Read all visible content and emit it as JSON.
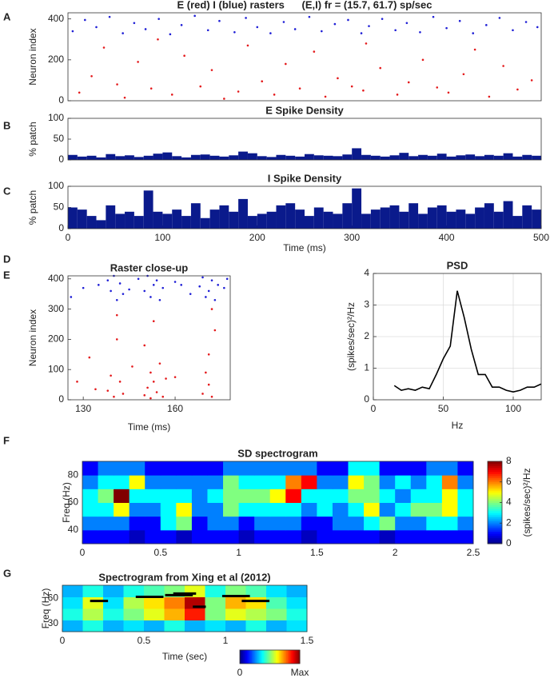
{
  "chart_data": [
    {
      "type": "raster",
      "panel": "A",
      "title": "E (red) I (blue) rasters      (E,I) fr = (15.7, 61.7) sp/sec",
      "ylabel": "Neuron index",
      "xlim": [
        0,
        500
      ],
      "ylim": [
        0,
        430
      ],
      "yticks": [
        0,
        200,
        400
      ],
      "series": [
        {
          "color": "#e41a1c",
          "x": [
            12,
            25,
            38,
            52,
            60,
            74,
            88,
            95,
            110,
            123,
            140,
            152,
            165,
            180,
            190,
            205,
            218,
            230,
            245,
            260,
            272,
            285,
            300,
            312,
            315,
            330,
            348,
            360,
            375,
            390,
            402,
            418,
            430,
            445,
            460,
            475,
            490
          ],
          "y": [
            40,
            120,
            260,
            80,
            15,
            190,
            60,
            300,
            30,
            220,
            70,
            150,
            10,
            45,
            270,
            95,
            30,
            180,
            60,
            240,
            20,
            110,
            70,
            50,
            280,
            160,
            30,
            90,
            200,
            65,
            40,
            130,
            250,
            20,
            170,
            55,
            100
          ]
        },
        {
          "color": "#1f1fd6",
          "x": [
            5,
            18,
            30,
            44,
            58,
            70,
            82,
            96,
            108,
            120,
            134,
            148,
            160,
            176,
            188,
            200,
            214,
            228,
            240,
            255,
            268,
            282,
            296,
            310,
            318,
            332,
            346,
            358,
            372,
            386,
            400,
            414,
            428,
            442,
            456,
            470,
            484,
            496
          ],
          "y": [
            340,
            395,
            360,
            410,
            330,
            380,
            350,
            400,
            325,
            370,
            415,
            345,
            390,
            335,
            405,
            360,
            330,
            385,
            350,
            410,
            340,
            375,
            395,
            330,
            365,
            400,
            345,
            380,
            335,
            410,
            355,
            390,
            330,
            370,
            405,
            345,
            385,
            360
          ]
        }
      ]
    },
    {
      "type": "histogram",
      "panel": "B",
      "title": "E Spike Density",
      "ylabel": "% patch",
      "color": "#0a1a8c",
      "xlim": [
        0,
        500
      ],
      "ylim": [
        0,
        100
      ],
      "yticks": [
        0,
        50,
        100
      ],
      "bins": [
        0,
        10,
        20,
        30,
        40,
        50,
        60,
        70,
        80,
        90,
        100,
        110,
        120,
        130,
        140,
        150,
        160,
        170,
        180,
        190,
        200,
        210,
        220,
        230,
        240,
        250,
        260,
        270,
        280,
        290,
        300,
        310,
        320,
        330,
        340,
        350,
        360,
        370,
        380,
        390,
        400,
        410,
        420,
        430,
        440,
        450,
        460,
        470,
        480,
        490,
        500
      ],
      "values": [
        12,
        8,
        10,
        6,
        14,
        9,
        11,
        7,
        10,
        15,
        18,
        9,
        6,
        12,
        13,
        10,
        8,
        11,
        20,
        16,
        9,
        7,
        12,
        10,
        8,
        14,
        11,
        10,
        9,
        13,
        28,
        12,
        10,
        8,
        11,
        17,
        9,
        12,
        10,
        15,
        8,
        11,
        13,
        9,
        12,
        10,
        16,
        8,
        12,
        10
      ]
    },
    {
      "type": "histogram",
      "panel": "C",
      "title": "I Spike Density",
      "ylabel": "% patch",
      "xlabel": "Time (ms)",
      "color": "#0a1a8c",
      "xlim": [
        0,
        500
      ],
      "ylim": [
        0,
        100
      ],
      "yticks": [
        0,
        50,
        100
      ],
      "xticks": [
        0,
        100,
        200,
        300,
        400,
        500
      ],
      "bins": [
        0,
        10,
        20,
        30,
        40,
        50,
        60,
        70,
        80,
        90,
        100,
        110,
        120,
        130,
        140,
        150,
        160,
        170,
        180,
        190,
        200,
        210,
        220,
        230,
        240,
        250,
        260,
        270,
        280,
        290,
        300,
        310,
        320,
        330,
        340,
        350,
        360,
        370,
        380,
        390,
        400,
        410,
        420,
        430,
        440,
        450,
        460,
        470,
        480,
        490,
        500
      ],
      "values": [
        50,
        45,
        30,
        20,
        55,
        35,
        40,
        30,
        90,
        40,
        35,
        45,
        30,
        60,
        25,
        45,
        55,
        40,
        70,
        30,
        35,
        40,
        55,
        60,
        45,
        30,
        50,
        40,
        35,
        60,
        95,
        35,
        45,
        50,
        55,
        40,
        60,
        35,
        50,
        55,
        40,
        45,
        35,
        50,
        60,
        40,
        65,
        30,
        55,
        45
      ]
    },
    {
      "type": "raster",
      "panel": "D",
      "title": "Raster close-up",
      "ylabel": "Neuron index",
      "xlabel": "Time (ms)",
      "xlim": [
        125,
        178
      ],
      "ylim": [
        0,
        410
      ],
      "xticks": [
        130,
        160
      ],
      "yticks": [
        0,
        100,
        200,
        300,
        400
      ],
      "series": [
        {
          "color": "#e41a1c",
          "x": [
            132,
            138,
            139,
            140,
            141,
            142,
            143,
            150,
            151,
            152,
            152,
            153,
            154,
            155,
            156,
            150,
            157,
            169,
            170,
            171,
            171,
            172,
            173,
            128,
            134,
            141,
            153,
            172,
            146,
            160
          ],
          "y": [
            140,
            30,
            80,
            10,
            200,
            60,
            20,
            15,
            40,
            90,
            5,
            60,
            25,
            120,
            10,
            180,
            70,
            20,
            90,
            50,
            150,
            10,
            230,
            60,
            35,
            280,
            260,
            300,
            110,
            75
          ]
        },
        {
          "color": "#1f1fd6",
          "x": [
            126,
            130,
            135,
            138,
            139,
            140,
            141,
            142,
            143,
            148,
            150,
            151,
            152,
            153,
            154,
            155,
            156,
            160,
            165,
            168,
            169,
            170,
            171,
            172,
            173,
            174,
            176,
            177,
            145,
            162
          ],
          "y": [
            340,
            370,
            380,
            395,
            360,
            410,
            330,
            385,
            350,
            400,
            360,
            410,
            340,
            380,
            395,
            330,
            370,
            390,
            350,
            375,
            405,
            340,
            360,
            395,
            330,
            380,
            370,
            400,
            365,
            380
          ]
        }
      ]
    },
    {
      "type": "line",
      "panel": "E",
      "title": "PSD",
      "ylabel": "(spikes/sec)²/Hz",
      "xlabel": "Hz",
      "color": "#000000",
      "grid": true,
      "xlim": [
        0,
        120
      ],
      "ylim": [
        0,
        4
      ],
      "xticks": [
        0,
        50,
        100
      ],
      "yticks": [
        0,
        1,
        2,
        3,
        4
      ],
      "x": [
        15,
        20,
        25,
        30,
        35,
        40,
        45,
        50,
        55,
        60,
        65,
        70,
        75,
        80,
        85,
        90,
        95,
        100,
        105,
        110,
        115,
        120
      ],
      "values": [
        0.45,
        0.3,
        0.35,
        0.3,
        0.4,
        0.35,
        0.8,
        1.3,
        1.7,
        3.45,
        2.6,
        1.6,
        0.8,
        0.8,
        0.4,
        0.4,
        0.3,
        0.25,
        0.3,
        0.4,
        0.4,
        0.5
      ]
    },
    {
      "type": "heatmap",
      "panel": "F",
      "title": "SD spectrogram",
      "ylabel": "Freq (Hz)",
      "xlim": [
        0,
        2.5
      ],
      "ylim": [
        30,
        90
      ],
      "xticks": [
        0,
        0.5,
        1,
        1.5,
        2,
        2.5
      ],
      "yticks": [
        40,
        60,
        80
      ],
      "clim": [
        0,
        8
      ],
      "colorbar": {
        "orientation": "vertical",
        "label": "(spikes/sec)²/Hz",
        "ticks": [
          0,
          2,
          4,
          6,
          8
        ]
      },
      "z": [
        [
          1,
          1,
          1,
          0.5,
          1,
          1,
          0.5,
          1,
          1,
          1,
          0.5,
          1,
          1,
          1,
          0.5,
          1,
          1,
          1,
          1,
          0.5,
          1,
          1,
          1,
          1,
          1
        ],
        [
          2,
          2,
          2,
          1,
          1,
          3,
          4,
          1,
          2,
          2,
          1,
          2,
          2,
          2,
          1,
          1,
          2,
          2,
          3,
          4,
          2,
          2,
          3,
          3,
          2
        ],
        [
          3,
          3,
          5,
          2,
          2,
          3,
          5,
          2,
          2,
          4,
          3,
          3,
          3,
          3,
          2,
          3,
          2,
          3,
          5,
          2,
          3,
          4,
          4,
          5,
          3
        ],
        [
          3,
          4,
          8,
          3,
          3,
          3,
          3,
          2,
          3,
          4,
          4,
          4,
          5,
          7,
          3,
          3,
          3,
          4,
          4,
          3,
          2,
          3,
          3,
          5,
          3
        ],
        [
          2,
          3,
          3,
          5,
          2,
          2,
          2,
          2,
          2,
          4,
          3,
          3,
          3,
          6,
          7,
          2,
          2,
          5,
          4,
          2,
          3,
          2,
          3,
          6,
          2
        ],
        [
          1,
          2,
          2,
          2,
          1,
          1,
          1,
          1,
          1,
          2,
          2,
          2,
          2,
          2,
          2,
          1,
          1,
          3,
          3,
          1,
          1,
          1,
          2,
          2,
          1
        ]
      ]
    },
    {
      "type": "heatmap",
      "panel": "G",
      "title": "Spectrogram from Xing et al (2012)",
      "ylabel": "Freq (Hz)",
      "xlabel": "Time (sec)",
      "xlim": [
        0,
        1.5
      ],
      "ylim": [
        20,
        76
      ],
      "xticks": [
        0,
        0.5,
        1,
        1.5
      ],
      "yticks": [
        30,
        60
      ],
      "clim": [
        0,
        1
      ],
      "colorbar": {
        "orientation": "horizontal",
        "ticks": [
          0,
          {
            "value": 1,
            "label": "Max"
          }
        ]
      },
      "z": [
        [
          0.3,
          0.4,
          0.3,
          0.35,
          0.3,
          0.4,
          0.3,
          0.35,
          0.3,
          0.4,
          0.3,
          0.35
        ],
        [
          0.4,
          0.55,
          0.4,
          0.5,
          0.6,
          0.7,
          0.85,
          0.5,
          0.6,
          0.55,
          0.5,
          0.4
        ],
        [
          0.35,
          0.6,
          0.35,
          0.55,
          0.65,
          0.75,
          0.95,
          0.5,
          0.7,
          0.65,
          0.45,
          0.35
        ],
        [
          0.3,
          0.4,
          0.3,
          0.4,
          0.45,
          0.5,
          0.6,
          0.4,
          0.5,
          0.45,
          0.35,
          0.3
        ]
      ],
      "segments": [
        [
          0.17,
          0.28,
          57
        ],
        [
          0.45,
          0.62,
          62
        ],
        [
          0.63,
          0.8,
          64
        ],
        [
          0.68,
          0.82,
          66
        ],
        [
          0.8,
          0.88,
          50
        ],
        [
          0.98,
          1.15,
          63
        ],
        [
          1.1,
          1.27,
          57
        ]
      ],
      "segment_color": "#000000"
    }
  ]
}
